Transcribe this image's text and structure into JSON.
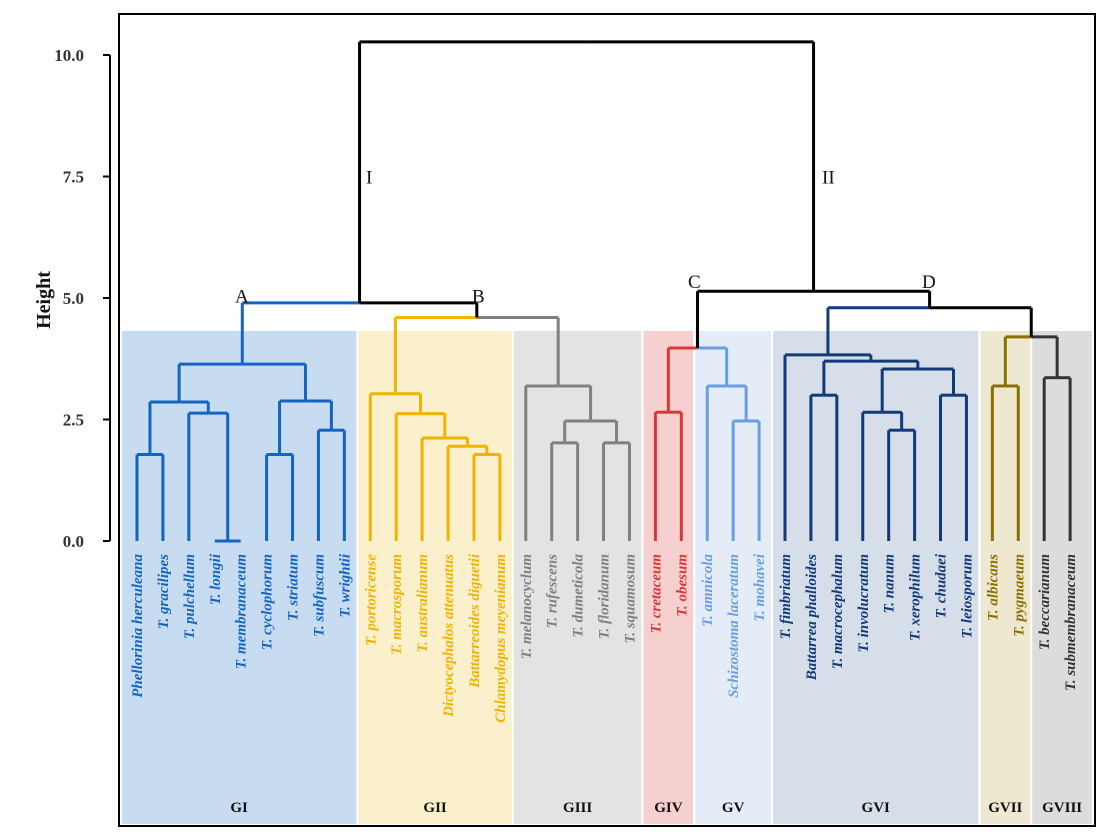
{
  "chart_data": {
    "type": "dendrogram",
    "ylabel": "Height",
    "ylim": [
      0,
      10.5
    ],
    "yticks": [
      "0.0",
      "2.5",
      "5.0",
      "7.5",
      "10.0"
    ],
    "ytick_values": [
      0,
      2.5,
      5.0,
      7.5,
      10.0
    ],
    "node_labels": [
      {
        "text": "I",
        "node": "I"
      },
      {
        "text": "II",
        "node": "II"
      },
      {
        "text": "A",
        "node": "A"
      },
      {
        "text": "B",
        "node": "B"
      },
      {
        "text": "C",
        "node": "C"
      },
      {
        "text": "D",
        "node": "D"
      }
    ],
    "groups": [
      {
        "id": "GI",
        "label": "GI",
        "color": "#1565c0",
        "bg": "#c7dcf0",
        "leaves": [
          "Phellorinia herculeana",
          "T. gracilipes",
          "T. pulchellum",
          "T. longii",
          "T. membranaceum",
          "T. cyclophorum",
          "T. striatum",
          "T. subfuscum",
          "T. wrightii"
        ]
      },
      {
        "id": "GII",
        "label": "GII",
        "color": "#f0b400",
        "bg": "#fbf0cc",
        "leaves": [
          "T. portoricense",
          "T. macrosporum",
          "T. australianum",
          "Dictyocephalos attenuatus",
          "Battarreoides diguetii",
          "Chlamydopus meyenianum"
        ]
      },
      {
        "id": "GIII",
        "label": "GIII",
        "color": "#808080",
        "bg": "#e3e3e3",
        "leaves": [
          "T. melanocyclum",
          "T. rufescens",
          "T. dumeticola",
          "T. floridanum",
          "T. squamosum"
        ]
      },
      {
        "id": "GIV",
        "label": "GIV",
        "color": "#d93838",
        "bg": "#f6cfcf",
        "leaves": [
          "T. cretaceum",
          "T. obesum"
        ]
      },
      {
        "id": "GV",
        "label": "GV",
        "color": "#6a9ee0",
        "bg": "#e4ecf7",
        "leaves": [
          "T. amnicola",
          "Schizostoma laceratum",
          "T. mohavei"
        ]
      },
      {
        "id": "GVI",
        "label": "GVI",
        "color": "#123a78",
        "bg": "#d6dfe9",
        "leaves": [
          "T. fimbriatum",
          "Battarrea phalloides",
          "T. macrocephalum",
          "T. involucratum",
          "T. nanum",
          "T. xerophilum",
          "T. chudaei",
          "T. leiosporum"
        ]
      },
      {
        "id": "GVII",
        "label": "GVII",
        "color": "#8a7000",
        "bg": "#ede8cf",
        "leaves": [
          "T. albicans",
          "T. pygmaeum"
        ]
      },
      {
        "id": "GVIII",
        "label": "GVIII",
        "color": "#333333",
        "bg": "#dcdcdc",
        "leaves": [
          "T. beccarianum",
          "T. submembranaceum"
        ]
      }
    ],
    "tree": {
      "name": "root",
      "h": 10.27,
      "color": "#000000",
      "children": [
        {
          "name": "I",
          "h": 4.9,
          "color": "#000000",
          "children": [
            {
              "name": "A",
              "h": 4.9,
              "color": "#1565c0",
              "children": [
                {
                  "h": 3.64,
                  "color": "#1565c0",
                  "children": [
                    {
                      "h": 2.86,
                      "color": "#1565c0",
                      "children": [
                        {
                          "h": 1.78,
                          "color": "#1565c0",
                          "children": [
                            {
                              "leaf": "Phellorinia herculeana"
                            },
                            {
                              "leaf": "T. gracilipes"
                            }
                          ]
                        },
                        {
                          "h": 2.63,
                          "color": "#1565c0",
                          "children": [
                            {
                              "leaf": "T. pulchellum"
                            },
                            {
                              "h": 0.0,
                              "color": "#1565c0",
                              "children": [
                                {
                                  "leaf": "T. longii"
                                },
                                {
                                  "leaf": "T. membranaceum"
                                }
                              ]
                            }
                          ]
                        }
                      ]
                    },
                    {
                      "h": 2.88,
                      "color": "#1565c0",
                      "children": [
                        {
                          "h": 1.78,
                          "color": "#1565c0",
                          "children": [
                            {
                              "leaf": "T. cyclophorum"
                            },
                            {
                              "leaf": "T. striatum"
                            }
                          ]
                        },
                        {
                          "h": 2.28,
                          "color": "#1565c0",
                          "children": [
                            {
                              "leaf": "T. subfuscum"
                            },
                            {
                              "leaf": "T. wrightii"
                            }
                          ]
                        }
                      ]
                    }
                  ]
                }
              ]
            },
            {
              "name": "B",
              "h": 4.6,
              "color": "#000000",
              "children": [
                {
                  "h": 4.6,
                  "color": "#f0b400",
                  "children": [
                    {
                      "h": 3.03,
                      "color": "#f0b400",
                      "children": [
                        {
                          "leaf": "T. portoricense"
                        },
                        {
                          "h": 2.62,
                          "color": "#f0b400",
                          "children": [
                            {
                              "leaf": "T. macrosporum"
                            },
                            {
                              "h": 2.12,
                              "color": "#f0b400",
                              "children": [
                                {
                                  "leaf": "T. australianum"
                                },
                                {
                                  "h": 1.95,
                                  "color": "#f0b400",
                                  "children": [
                                    {
                                      "leaf": "Dictyocephalos attenuatus"
                                    },
                                    {
                                      "h": 1.78,
                                      "color": "#f0b400",
                                      "children": [
                                        {
                                          "leaf": "Battarreoides diguetii"
                                        },
                                        {
                                          "leaf": "Chlamydopus meyenianum"
                                        }
                                      ]
                                    }
                                  ]
                                }
                              ]
                            }
                          ]
                        }
                      ]
                    }
                  ]
                },
                {
                  "h": 4.6,
                  "color": "#808080",
                  "children": [
                    {
                      "h": 3.19,
                      "color": "#808080",
                      "children": [
                        {
                          "leaf": "T. melanocyclum"
                        },
                        {
                          "h": 2.47,
                          "color": "#808080",
                          "children": [
                            {
                              "h": 2.02,
                              "color": "#808080",
                              "children": [
                                {
                                  "leaf": "T. rufescens"
                                },
                                {
                                  "leaf": "T. dumeticola"
                                }
                              ]
                            },
                            {
                              "h": 2.02,
                              "color": "#808080",
                              "children": [
                                {
                                  "leaf": "T. floridanum"
                                },
                                {
                                  "leaf": "T. squamosum"
                                }
                              ]
                            }
                          ]
                        }
                      ]
                    }
                  ]
                }
              ]
            }
          ]
        },
        {
          "name": "II",
          "h": 5.14,
          "color": "#000000",
          "children": [
            {
              "name": "C",
              "h": 3.97,
              "color": "#000000",
              "children": [
                {
                  "h": 3.97,
                  "color": "#d93838",
                  "children": [
                    {
                      "h": 2.65,
                      "color": "#d93838",
                      "children": [
                        {
                          "leaf": "T. cretaceum"
                        },
                        {
                          "leaf": "T. obesum"
                        }
                      ]
                    }
                  ]
                },
                {
                  "h": 3.97,
                  "color": "#6a9ee0",
                  "children": [
                    {
                      "h": 3.19,
                      "color": "#6a9ee0",
                      "children": [
                        {
                          "leaf": "T. amnicola"
                        },
                        {
                          "h": 2.47,
                          "color": "#6a9ee0",
                          "children": [
                            {
                              "leaf": "Schizostoma laceratum"
                            },
                            {
                              "leaf": "T. mohavei"
                            }
                          ]
                        }
                      ]
                    }
                  ]
                }
              ]
            },
            {
              "name": "D",
              "h": 4.8,
              "color": "#000000",
              "children": [
                {
                  "h": 4.8,
                  "color": "#123a78",
                  "children": [
                    {
                      "h": 3.83,
                      "color": "#123a78",
                      "children": [
                        {
                          "leaf": "T. fimbriatum"
                        },
                        {
                          "h": 3.7,
                          "color": "#123a78",
                          "children": [
                            {
                              "h": 3.0,
                              "color": "#123a78",
                              "children": [
                                {
                                  "leaf": "Battarrea phalloides"
                                },
                                {
                                  "leaf": "T. macrocephalum"
                                }
                              ]
                            },
                            {
                              "h": 3.54,
                              "color": "#123a78",
                              "children": [
                                {
                                  "h": 2.65,
                                  "color": "#123a78",
                                  "children": [
                                    {
                                      "leaf": "T. involucratum"
                                    },
                                    {
                                      "h": 2.28,
                                      "color": "#123a78",
                                      "children": [
                                        {
                                          "leaf": "T. nanum"
                                        },
                                        {
                                          "leaf": "T. xerophilum"
                                        }
                                      ]
                                    }
                                  ]
                                },
                                {
                                  "h": 3.0,
                                  "color": "#123a78",
                                  "children": [
                                    {
                                      "leaf": "T. chudaei"
                                    },
                                    {
                                      "leaf": "T. leiosporum"
                                    }
                                  ]
                                }
                              ]
                            }
                          ]
                        }
                      ]
                    }
                  ]
                },
                {
                  "h": 4.2,
                  "color": "#000000",
                  "children": [
                    {
                      "h": 4.2,
                      "color": "#8a7000",
                      "children": [
                        {
                          "h": 3.19,
                          "color": "#8a7000",
                          "children": [
                            {
                              "leaf": "T. albicans"
                            },
                            {
                              "leaf": "T. pygmaeum"
                            }
                          ]
                        }
                      ]
                    },
                    {
                      "h": 4.2,
                      "color": "#333333",
                      "children": [
                        {
                          "h": 3.36,
                          "color": "#333333",
                          "children": [
                            {
                              "leaf": "T. beccarianum"
                            },
                            {
                              "leaf": "T. submembranaceum"
                            }
                          ]
                        }
                      ]
                    }
                  ]
                }
              ]
            }
          ]
        }
      ]
    }
  }
}
